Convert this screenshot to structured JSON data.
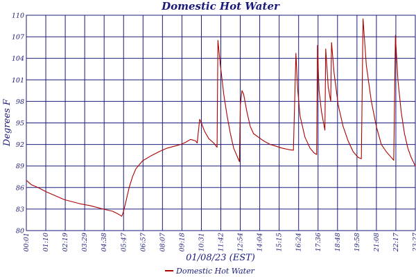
{
  "chart_data": {
    "type": "line",
    "title": "Domestic Hot Water",
    "xlabel": "01/08/23 (EST)",
    "ylabel": "Degrees F",
    "ylim": [
      80,
      110
    ],
    "y_ticks": [
      "80",
      "83",
      "86",
      "89",
      "92",
      "95",
      "98",
      "101",
      "104",
      "107",
      "110"
    ],
    "x_ticks": [
      "00:01",
      "01:10",
      "02:19",
      "03:29",
      "04:38",
      "05:47",
      "06:57",
      "08:07",
      "09:18",
      "10:31",
      "11:42",
      "12:54",
      "14:04",
      "15:15",
      "16:24",
      "17:36",
      "18:48",
      "19:58",
      "21:08",
      "22:17",
      "23:27"
    ],
    "grid": true,
    "legend": "bottom-center",
    "colors": {
      "series": "#aa0000",
      "frame": "#1a1a7a"
    },
    "series": [
      {
        "name": "Domestic Hot Water",
        "x_start": "00:01",
        "x_end": "23:27",
        "points": [
          [
            0.0,
            87.0
          ],
          [
            0.3,
            86.4
          ],
          [
            0.7,
            86.0
          ],
          [
            1.2,
            85.4
          ],
          [
            1.8,
            84.8
          ],
          [
            2.3,
            84.3
          ],
          [
            2.8,
            84.0
          ],
          [
            3.3,
            83.7
          ],
          [
            3.8,
            83.5
          ],
          [
            4.3,
            83.2
          ],
          [
            4.8,
            82.9
          ],
          [
            5.2,
            82.7
          ],
          [
            5.55,
            82.3
          ],
          [
            5.75,
            82.0
          ],
          [
            5.85,
            82.6
          ],
          [
            6.0,
            84.0
          ],
          [
            6.2,
            86.0
          ],
          [
            6.4,
            87.5
          ],
          [
            6.6,
            88.6
          ],
          [
            7.0,
            89.7
          ],
          [
            7.5,
            90.4
          ],
          [
            8.0,
            91.0
          ],
          [
            8.5,
            91.5
          ],
          [
            9.0,
            91.8
          ],
          [
            9.3,
            92.0
          ],
          [
            9.6,
            92.3
          ],
          [
            9.9,
            92.7
          ],
          [
            10.2,
            92.5
          ],
          [
            10.3,
            92.2
          ],
          [
            10.45,
            95.5
          ],
          [
            10.55,
            95.0
          ],
          [
            10.75,
            93.8
          ],
          [
            11.0,
            92.8
          ],
          [
            11.3,
            92.2
          ],
          [
            11.5,
            91.6
          ],
          [
            11.55,
            106.5
          ],
          [
            11.7,
            103.0
          ],
          [
            11.9,
            99.0
          ],
          [
            12.1,
            96.0
          ],
          [
            12.3,
            93.5
          ],
          [
            12.5,
            91.5
          ],
          [
            12.7,
            90.4
          ],
          [
            12.85,
            89.6
          ],
          [
            12.9,
            97.5
          ],
          [
            13.0,
            99.5
          ],
          [
            13.1,
            99.0
          ],
          [
            13.3,
            96.5
          ],
          [
            13.5,
            94.5
          ],
          [
            13.7,
            93.5
          ],
          [
            14.0,
            93.0
          ],
          [
            14.3,
            92.5
          ],
          [
            14.7,
            92.0
          ],
          [
            15.0,
            91.8
          ],
          [
            15.4,
            91.5
          ],
          [
            15.8,
            91.3
          ],
          [
            16.1,
            91.2
          ],
          [
            16.25,
            104.7
          ],
          [
            16.35,
            100.0
          ],
          [
            16.5,
            96.0
          ],
          [
            16.8,
            93.0
          ],
          [
            17.1,
            91.5
          ],
          [
            17.35,
            90.8
          ],
          [
            17.5,
            90.6
          ],
          [
            17.55,
            105.8
          ],
          [
            17.65,
            99.5
          ],
          [
            17.8,
            96.5
          ],
          [
            18.0,
            94.0
          ],
          [
            18.05,
            105.3
          ],
          [
            18.2,
            100.0
          ],
          [
            18.35,
            98.0
          ],
          [
            18.4,
            106.2
          ],
          [
            18.55,
            102.0
          ],
          [
            18.8,
            97.5
          ],
          [
            19.1,
            94.5
          ],
          [
            19.4,
            92.5
          ],
          [
            19.7,
            91.0
          ],
          [
            20.0,
            90.2
          ],
          [
            20.2,
            90.0
          ],
          [
            20.3,
            109.5
          ],
          [
            20.5,
            103.0
          ],
          [
            20.8,
            98.0
          ],
          [
            21.1,
            94.5
          ],
          [
            21.4,
            92.0
          ],
          [
            21.7,
            91.0
          ],
          [
            22.0,
            90.2
          ],
          [
            22.15,
            89.8
          ],
          [
            22.25,
            107.2
          ],
          [
            22.4,
            101.0
          ],
          [
            22.6,
            96.5
          ],
          [
            22.8,
            93.5
          ],
          [
            23.0,
            91.5
          ],
          [
            23.2,
            90.2
          ],
          [
            23.45,
            89.0
          ]
        ]
      }
    ]
  }
}
